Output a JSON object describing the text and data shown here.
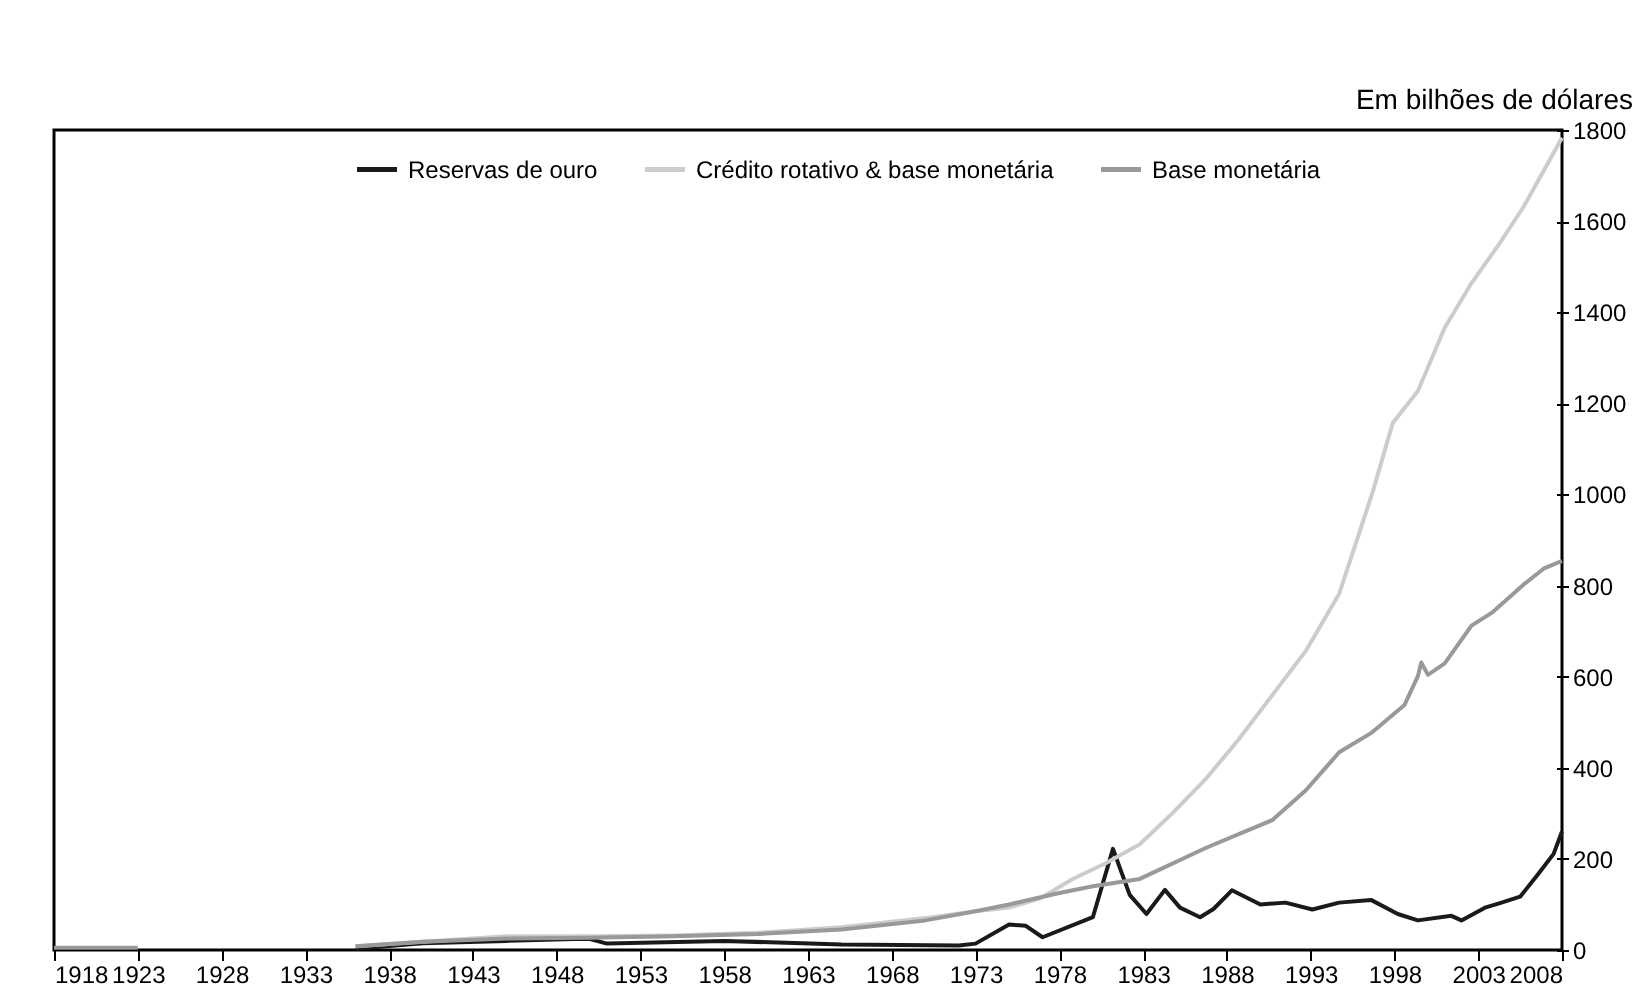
{
  "chart_data": {
    "type": "line",
    "ylabel": "Em bilhões de dólares",
    "xlim": [
      1918,
      2008
    ],
    "xticks": [
      1918,
      1923,
      1928,
      1933,
      1938,
      1943,
      1948,
      1953,
      1958,
      1963,
      1968,
      1973,
      1978,
      1983,
      1988,
      1993,
      1998,
      2003,
      2008
    ],
    "ylim": [
      0,
      1800
    ],
    "yticks": [
      0,
      200,
      400,
      600,
      800,
      1000,
      1200,
      1400,
      1600,
      1800
    ],
    "grid": false,
    "legend": "top",
    "marker": "none",
    "line_style": "solid",
    "series": [
      {
        "name": "Reservas de ouro",
        "color": "#1a1a1a",
        "x": [
          1936,
          1940,
          1945,
          1949,
          1950,
          1951,
          1958,
          1965,
          1972,
          1973,
          1975,
          1976,
          1977,
          1980,
          1981.2,
          1982.2,
          1983.2,
          1984.3,
          1985.2,
          1986.4,
          1987.2,
          1988.3,
          1990,
          1991.5,
          1993.1,
          1994.7,
          1996.6,
          1998.2,
          1999.4,
          2001.4,
          2002,
          2003.4,
          2004.3,
          2005.5,
          2006.5,
          2007.5,
          2008
        ],
        "values": [
          3,
          15,
          20,
          24,
          24,
          14,
          20,
          12,
          10,
          14,
          56,
          53,
          28,
          72,
          222,
          121,
          79,
          132,
          93,
          72,
          90,
          131,
          100,
          104,
          89,
          104,
          110,
          79,
          65,
          75,
          65,
          93,
          103,
          117,
          163,
          211,
          260
        ]
      },
      {
        "name": "Crédito rotativo & base monetária",
        "color": "#cccccc",
        "x": [
          1936,
          1940,
          1945,
          1950,
          1955,
          1960,
          1965,
          1970,
          1973,
          1975,
          1976.9,
          1978.8,
          1980.8,
          1982.8,
          1984.8,
          1986.8,
          1988.7,
          1990.7,
          1992.7,
          1994.7,
          1996.7,
          1997.9,
          1999.4,
          2001,
          2002.6,
          2004.2,
          2005.7,
          2008
        ],
        "values": [
          8,
          18,
          30,
          30,
          32,
          38,
          50,
          70,
          85,
          93,
          114,
          156,
          191,
          232,
          302,
          378,
          462,
          559,
          656,
          782,
          1005,
          1157,
          1227,
          1366,
          1464,
          1547,
          1631,
          1783
        ]
      },
      {
        "name": "Base monetária",
        "color": "#999999",
        "x": [
          1918,
          1923,
          1924,
          1936,
          1940,
          1945,
          1950,
          1955,
          1960,
          1965,
          1970,
          1973,
          1975,
          1978,
          1980,
          1982.8,
          1986.8,
          1990.7,
          1992.7,
          1994.7,
          1996.6,
          1998.6,
          1999.4,
          1999.6,
          2000,
          2001,
          2002.6,
          2003.8,
          2005.7,
          2006.9,
          2008
        ],
        "values": [
          5,
          5,
          null,
          8,
          18,
          25,
          27,
          30,
          35,
          45,
          65,
          85,
          100,
          125,
          140,
          156,
          225,
          285,
          350,
          434,
          476,
          538,
          601,
          631,
          604,
          629,
          712,
          740,
          802,
          837,
          854
        ]
      }
    ]
  }
}
